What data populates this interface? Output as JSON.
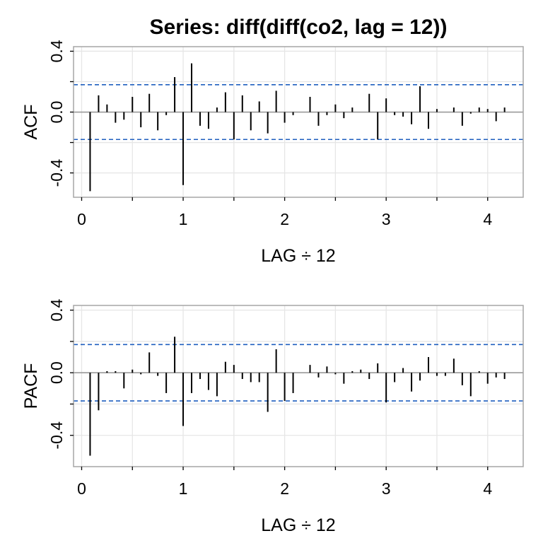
{
  "title": "Series:  diff(diff(co2, lag = 12))",
  "chart_data": [
    {
      "type": "bar",
      "name": "ACF",
      "ylabel": "ACF",
      "xlabel": "LAG ÷ 12",
      "xlim": [
        -0.08,
        4.35
      ],
      "ylim": [
        -0.56,
        0.43
      ],
      "x_ticks": [
        0,
        1,
        2,
        3,
        4
      ],
      "y_ticks": [
        -0.4,
        0.0,
        0.4
      ],
      "y_tick_labels": [
        "-0.4",
        "0.0",
        "0.4"
      ],
      "grid": true,
      "confidence_bounds": [
        0.18,
        -0.18
      ],
      "lag_step": 0.08333,
      "values": [
        -0.52,
        0.11,
        0.05,
        -0.07,
        -0.05,
        0.1,
        -0.1,
        0.12,
        -0.12,
        -0.02,
        0.23,
        -0.48,
        0.32,
        -0.09,
        -0.11,
        0.03,
        0.13,
        -0.18,
        0.11,
        -0.12,
        0.07,
        -0.14,
        0.14,
        -0.07,
        -0.02,
        0.0,
        0.1,
        -0.09,
        -0.02,
        0.05,
        -0.04,
        0.03,
        0.0,
        0.12,
        -0.18,
        0.09,
        -0.02,
        -0.03,
        -0.08,
        0.17,
        -0.11,
        0.02,
        0.0,
        0.03,
        -0.09,
        -0.01,
        0.03,
        0.02,
        -0.06,
        0.03
      ]
    },
    {
      "type": "bar",
      "name": "PACF",
      "ylabel": "PACF",
      "xlabel": "LAG ÷ 12",
      "xlim": [
        -0.08,
        4.35
      ],
      "ylim": [
        -0.6,
        0.43
      ],
      "x_ticks": [
        0,
        1,
        2,
        3,
        4
      ],
      "y_ticks": [
        -0.4,
        0.0,
        0.4
      ],
      "y_tick_labels": [
        "-0.4",
        "0.0",
        "0.4"
      ],
      "grid": true,
      "confidence_bounds": [
        0.18,
        -0.18
      ],
      "lag_step": 0.08333,
      "values": [
        -0.53,
        -0.24,
        0.01,
        0.01,
        -0.1,
        0.02,
        -0.01,
        0.13,
        -0.02,
        -0.13,
        0.23,
        -0.34,
        -0.13,
        -0.04,
        -0.11,
        -0.15,
        0.07,
        0.05,
        -0.04,
        -0.06,
        -0.06,
        -0.25,
        0.15,
        -0.18,
        -0.13,
        0.0,
        0.05,
        -0.03,
        0.04,
        -0.01,
        -0.07,
        0.01,
        0.02,
        -0.04,
        0.06,
        -0.19,
        -0.06,
        0.03,
        -0.12,
        -0.05,
        0.1,
        -0.02,
        -0.02,
        0.09,
        -0.08,
        -0.15,
        0.01,
        -0.07,
        -0.03,
        -0.04
      ]
    }
  ],
  "colors": {
    "spike": "#000000",
    "confidence_line": "#1f5fbf",
    "zero_line": "#999999",
    "grid": "#e6e6e6",
    "frame": "#a6a6a6"
  }
}
